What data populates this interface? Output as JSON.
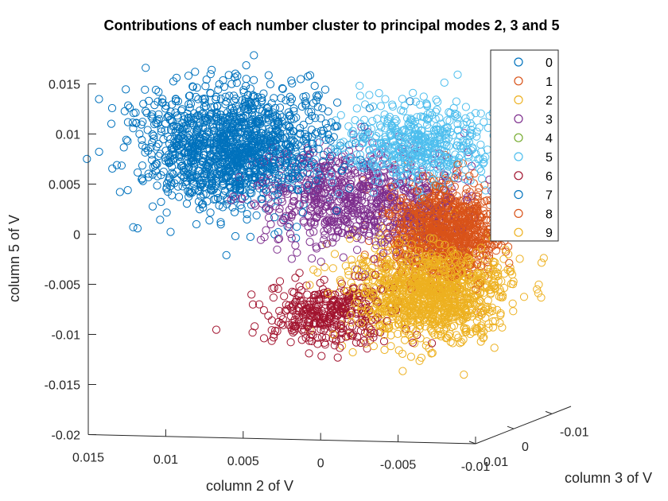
{
  "chart_data": {
    "type": "scatter",
    "title": "Contributions of each number cluster to principal modes 2, 3 and 5",
    "xlabel": "column 2 of V",
    "ylabel": "column 3 of V",
    "zlabel": "column 5 of V",
    "xlim": [
      -0.01,
      0.015
    ],
    "ylim": [
      -0.015,
      0.01
    ],
    "zlim": [
      -0.02,
      0.015
    ],
    "xticks": [
      "0.015",
      "0.01",
      "0.005",
      "0",
      "-0.005",
      "-0.01"
    ],
    "yticks": [
      "0.01",
      "0",
      "-0.01"
    ],
    "zticks": [
      "0.015",
      "0.01",
      "0.005",
      "0",
      "-0.005",
      "-0.01",
      "-0.015",
      "-0.02"
    ],
    "legend_position": "top-right",
    "marker": "open-circle",
    "series": [
      {
        "name": "0",
        "color": "#0072BD",
        "center": [
          0.0085,
          -0.002,
          0.007
        ],
        "spread": [
          0.003,
          0.003,
          0.003
        ],
        "count": 900
      },
      {
        "name": "1",
        "color": "#D95319",
        "center": [
          -0.006,
          0.003,
          0.0002
        ],
        "spread": [
          0.0018,
          0.002,
          0.0025
        ],
        "count": 600
      },
      {
        "name": "2",
        "color": "#EDB120",
        "center": [
          -0.0045,
          0.001,
          -0.0065
        ],
        "spread": [
          0.0025,
          0.0025,
          0.0025
        ],
        "count": 700
      },
      {
        "name": "3",
        "color": "#7E2F8E",
        "center": [
          0.0,
          0.0,
          0.0025
        ],
        "spread": [
          0.003,
          0.003,
          0.0025
        ],
        "count": 700
      },
      {
        "name": "4",
        "color": "#77AC30",
        "center": [
          0.0,
          0.0,
          0.0
        ],
        "spread": [
          0.0005,
          0.0005,
          0.0005
        ],
        "count": 0
      },
      {
        "name": "5",
        "color": "#4DBEEE",
        "center": [
          -0.0035,
          -0.001,
          0.008
        ],
        "spread": [
          0.0025,
          0.002,
          0.002
        ],
        "count": 500
      },
      {
        "name": "6",
        "color": "#A2142F",
        "center": [
          0.002,
          0.0,
          -0.009
        ],
        "spread": [
          0.002,
          0.002,
          0.0015
        ],
        "count": 350
      },
      {
        "name": "7",
        "color": "#0072BD",
        "center": [
          0.0085,
          -0.002,
          0.007
        ],
        "spread": [
          0.0028,
          0.0028,
          0.0028
        ],
        "count": 500
      },
      {
        "name": "8",
        "color": "#D95319",
        "center": [
          -0.0065,
          0.003,
          0.0
        ],
        "spread": [
          0.0016,
          0.0018,
          0.0022
        ],
        "count": 450
      },
      {
        "name": "9",
        "color": "#EDB120",
        "center": [
          -0.005,
          0.001,
          -0.0065
        ],
        "spread": [
          0.0022,
          0.0022,
          0.0022
        ],
        "count": 500
      }
    ]
  }
}
